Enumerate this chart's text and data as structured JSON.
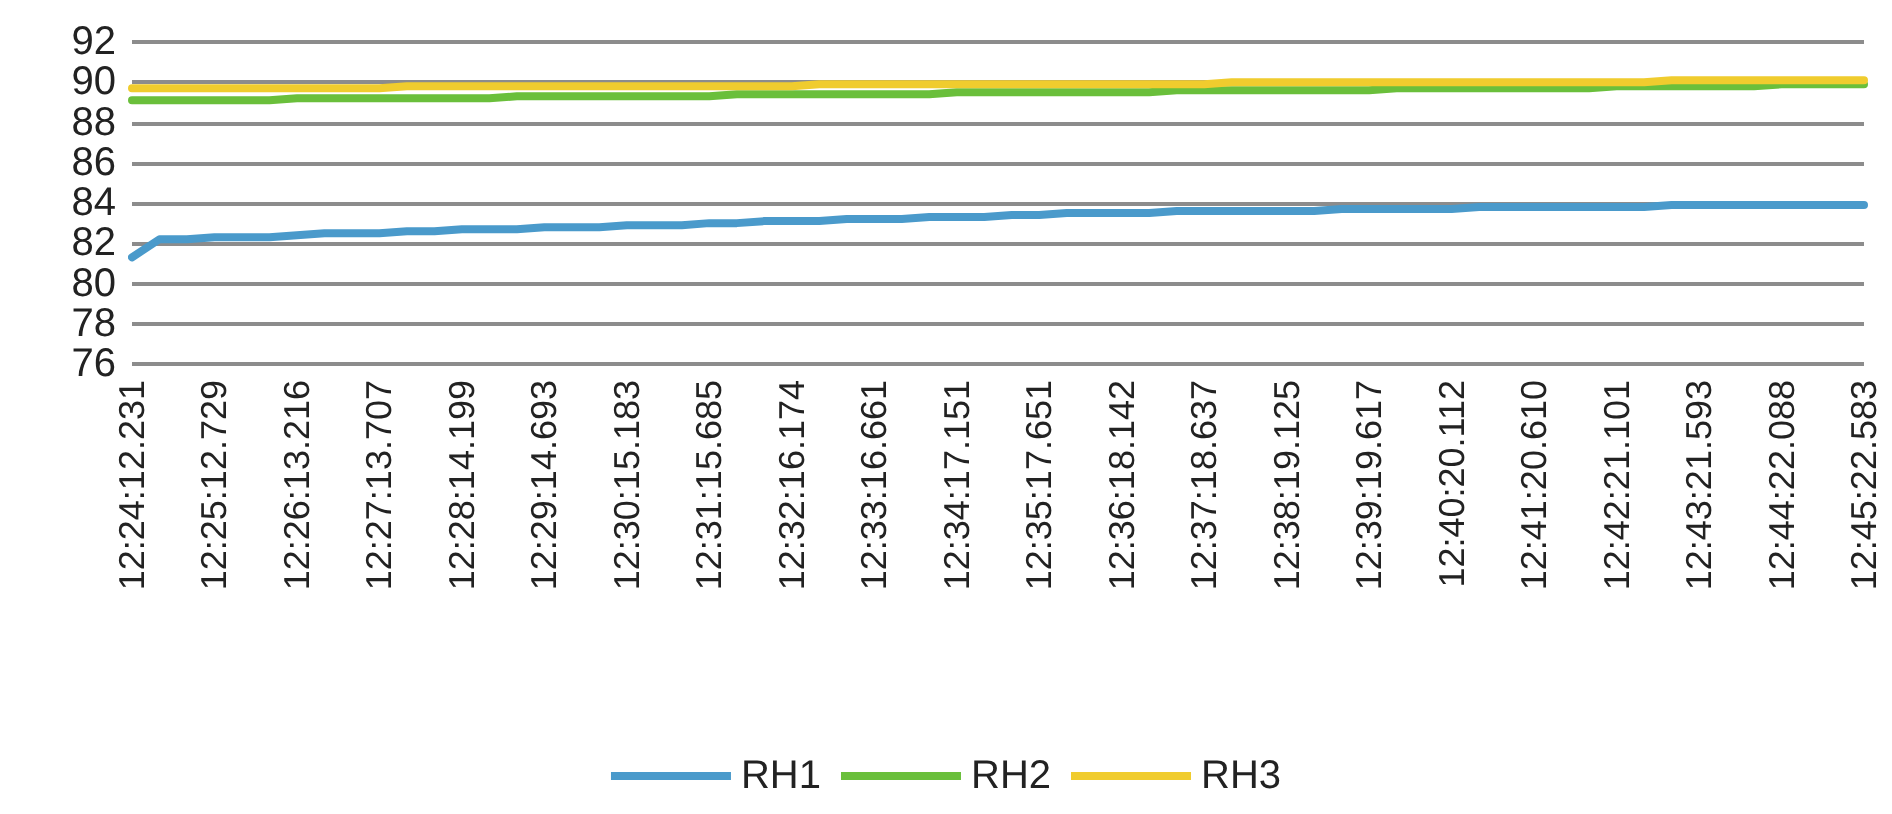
{
  "chart_data": {
    "type": "line",
    "categories": [
      "12:24:12.231",
      null,
      null,
      "12:25:12.729",
      null,
      null,
      "12:26:13.216",
      null,
      null,
      "12:27:13.707",
      null,
      null,
      "12:28:14.199",
      null,
      null,
      "12:29:14.693",
      null,
      null,
      "12:30:15.183",
      null,
      null,
      "12:31:15.685",
      null,
      null,
      "12:32:16.174",
      null,
      null,
      "12:33:16.661",
      null,
      null,
      "12:34:17.151",
      null,
      null,
      "12:35:17.651",
      null,
      null,
      "12:36:18.142",
      null,
      null,
      "12:37:18.637",
      null,
      null,
      "12:38:19.125",
      null,
      null,
      "12:39:19.617",
      null,
      null,
      "12:40:20.112",
      null,
      null,
      "12:41:20.610",
      null,
      null,
      "12:42:21.101",
      null,
      null,
      "12:43:21.593",
      null,
      null,
      "12:44:22.088",
      null,
      null,
      "12:45:22.583"
    ],
    "series": [
      {
        "name": "RH1",
        "color": "#4a9acb",
        "values": [
          81.3,
          82.2,
          82.2,
          82.3,
          82.3,
          82.3,
          82.4,
          82.5,
          82.5,
          82.5,
          82.6,
          82.6,
          82.7,
          82.7,
          82.7,
          82.8,
          82.8,
          82.8,
          82.9,
          82.9,
          82.9,
          83.0,
          83.0,
          83.1,
          83.1,
          83.1,
          83.2,
          83.2,
          83.2,
          83.3,
          83.3,
          83.3,
          83.4,
          83.4,
          83.5,
          83.5,
          83.5,
          83.5,
          83.6,
          83.6,
          83.6,
          83.6,
          83.6,
          83.6,
          83.7,
          83.7,
          83.7,
          83.7,
          83.7,
          83.8,
          83.8,
          83.8,
          83.8,
          83.8,
          83.8,
          83.8,
          83.9,
          83.9,
          83.9,
          83.9,
          83.9,
          83.9,
          83.9,
          83.9
        ]
      },
      {
        "name": "RH2",
        "color": "#6abf3b",
        "values": [
          89.1,
          89.1,
          89.1,
          89.1,
          89.1,
          89.1,
          89.2,
          89.2,
          89.2,
          89.2,
          89.2,
          89.2,
          89.2,
          89.2,
          89.3,
          89.3,
          89.3,
          89.3,
          89.3,
          89.3,
          89.3,
          89.3,
          89.4,
          89.4,
          89.4,
          89.4,
          89.4,
          89.4,
          89.4,
          89.4,
          89.5,
          89.5,
          89.5,
          89.5,
          89.5,
          89.5,
          89.5,
          89.5,
          89.6,
          89.6,
          89.6,
          89.6,
          89.6,
          89.6,
          89.6,
          89.6,
          89.7,
          89.7,
          89.7,
          89.7,
          89.7,
          89.7,
          89.7,
          89.7,
          89.8,
          89.8,
          89.8,
          89.8,
          89.8,
          89.8,
          89.9,
          89.9,
          89.9,
          89.9
        ]
      },
      {
        "name": "RH3",
        "color": "#f0cc2e",
        "values": [
          89.7,
          89.7,
          89.7,
          89.7,
          89.7,
          89.7,
          89.7,
          89.7,
          89.7,
          89.7,
          89.8,
          89.8,
          89.8,
          89.8,
          89.8,
          89.8,
          89.8,
          89.8,
          89.8,
          89.8,
          89.8,
          89.8,
          89.8,
          89.8,
          89.8,
          89.9,
          89.9,
          89.9,
          89.9,
          89.9,
          89.9,
          89.9,
          89.9,
          89.9,
          89.9,
          89.9,
          89.9,
          89.9,
          89.9,
          89.9,
          90.0,
          90.0,
          90.0,
          90.0,
          90.0,
          90.0,
          90.0,
          90.0,
          90.0,
          90.0,
          90.0,
          90.0,
          90.0,
          90.0,
          90.0,
          90.0,
          90.1,
          90.1,
          90.1,
          90.1,
          90.1,
          90.1,
          90.1,
          90.1
        ]
      }
    ],
    "ylim": [
      76,
      92
    ],
    "yticks": [
      76,
      78,
      80,
      82,
      84,
      86,
      88,
      90,
      92
    ],
    "grid": "y",
    "legend": "bottom",
    "marker": "none",
    "line_style": "solid"
  }
}
